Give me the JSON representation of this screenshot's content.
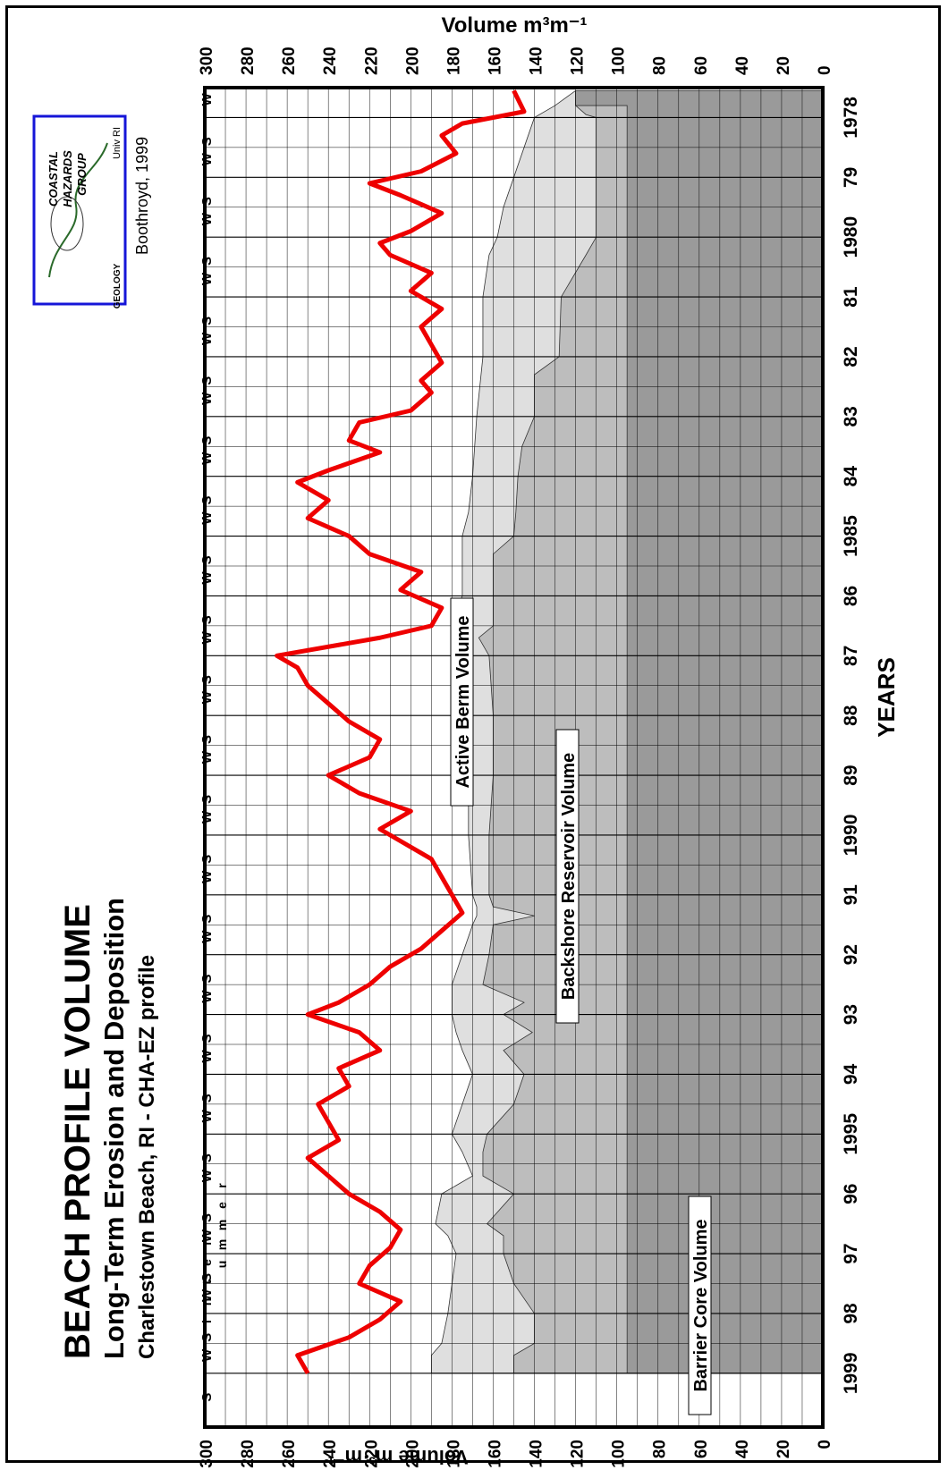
{
  "chart_data": {
    "type": "area",
    "title": "BEACH PROFILE VOLUME",
    "subtitle": "Long-Term Erosion and Deposition",
    "subtitle2": "Charlestown Beach, RI  -  CHA-EZ profile",
    "credit": "Boothroyd, 1999",
    "xlabel": "YEARS",
    "ylabel_left": "Volume   m³·m⁻¹",
    "ylabel_right": "Volume   m³m⁻¹",
    "ylim": [
      0,
      300
    ],
    "xlim": [
      1977.5,
      1999.9
    ],
    "y_ticks": [
      "0",
      "20",
      "40",
      "60",
      "80",
      "100",
      "120",
      "140",
      "160",
      "180",
      "200",
      "220",
      "240",
      "260",
      "280",
      "300"
    ],
    "x_ticks": [
      {
        "year": 1978,
        "label": "1978"
      },
      {
        "year": 1979,
        "label": "79"
      },
      {
        "year": 1980,
        "label": "1980"
      },
      {
        "year": 1981,
        "label": "81"
      },
      {
        "year": 1982,
        "label": "82"
      },
      {
        "year": 1983,
        "label": "83"
      },
      {
        "year": 1984,
        "label": "84"
      },
      {
        "year": 1985,
        "label": "1985"
      },
      {
        "year": 1986,
        "label": "86"
      },
      {
        "year": 1987,
        "label": "87"
      },
      {
        "year": 1988,
        "label": "88"
      },
      {
        "year": 1989,
        "label": "89"
      },
      {
        "year": 1990,
        "label": "1990"
      },
      {
        "year": 1991,
        "label": "91"
      },
      {
        "year": 1992,
        "label": "92"
      },
      {
        "year": 1993,
        "label": "93"
      },
      {
        "year": 1994,
        "label": "94"
      },
      {
        "year": 1995,
        "label": "1995"
      },
      {
        "year": 1996,
        "label": "96"
      },
      {
        "year": 1997,
        "label": "97"
      },
      {
        "year": 1998,
        "label": "98"
      },
      {
        "year": 1999,
        "label": "1999"
      }
    ],
    "grid": true,
    "season_legend": {
      "winter": "W",
      "summer": "S",
      "winter_word": "inter",
      "summer_word": "ummer",
      "winter_color": "#1515d8",
      "summer_color": "#19b319"
    },
    "regions": [
      {
        "name": "Barrier Core Volume",
        "color": "#9a9a9a",
        "x": [
          1977.55,
          1977.8,
          1977.8,
          1978.1,
          1999.0
        ],
        "y": [
          120,
          120,
          95,
          95,
          95
        ]
      },
      {
        "name": "Backshore Reservoir Volume",
        "color": "#bdbdbd",
        "x": [
          1977.55,
          1977.8,
          1977.95,
          1978.0,
          1980.0,
          1980.3,
          1981.0,
          1982.0,
          1982.3,
          1983.0,
          1983.5,
          1984.0,
          1984.6,
          1985.0,
          1985.3,
          1986.0,
          1986.5,
          1986.7,
          1987.0,
          1988.0,
          1989.0,
          1990.0,
          1991.0,
          1991.2,
          1991.35,
          1991.5,
          1992.0,
          1992.5,
          1992.8,
          1993.0,
          1993.3,
          1993.6,
          1994.0,
          1994.5,
          1995.0,
          1995.3,
          1995.7,
          1996.0,
          1996.5,
          1996.7,
          1997.0,
          1997.5,
          1998.0,
          1998.5,
          1998.7,
          1999.0
        ],
        "y": [
          120,
          120,
          115,
          110,
          110,
          115,
          127,
          128,
          140,
          140,
          146,
          148,
          149,
          150,
          160,
          160,
          160,
          167,
          162,
          160,
          160,
          162,
          162,
          160,
          140,
          160,
          162,
          165,
          145,
          155,
          141,
          155,
          145,
          150,
          163,
          165,
          165,
          150,
          163,
          155,
          155,
          150,
          140,
          140,
          150,
          150
        ]
      },
      {
        "name": "Active Berm Volume",
        "color": "#dfdfdf",
        "x": [
          1977.55,
          1977.8,
          1978.0,
          1979.0,
          1979.5,
          1980.0,
          1980.3,
          1981.0,
          1982.0,
          1983.0,
          1984.0,
          1984.6,
          1985.0,
          1986.0,
          1986.4,
          1986.6,
          1987.0,
          1988.0,
          1989.0,
          1990.0,
          1991.0,
          1991.2,
          1991.35,
          1991.5,
          1992.0,
          1992.5,
          1992.8,
          1993.0,
          1993.3,
          1993.6,
          1994.0,
          1994.5,
          1995.0,
          1995.3,
          1995.7,
          1996.0,
          1996.5,
          1996.7,
          1997.0,
          1997.5,
          1998.0,
          1998.5,
          1998.7,
          1999.0
        ],
        "y": [
          120,
          130,
          140,
          150,
          155,
          158,
          162,
          165,
          165,
          168,
          170,
          172,
          175,
          175,
          180,
          180,
          178,
          175,
          172,
          172,
          170,
          168,
          168,
          170,
          175,
          180,
          180,
          180,
          178,
          175,
          170,
          175,
          180,
          175,
          170,
          185,
          188,
          182,
          178,
          180,
          182,
          185,
          190,
          190
        ]
      }
    ],
    "series": [
      {
        "name": "",
        "color": "#ee0000",
        "x": [
          1977.55,
          1977.9,
          1978.1,
          1978.3,
          1978.6,
          1978.9,
          1979.1,
          1979.3,
          1979.6,
          1979.9,
          1980.1,
          1980.3,
          1980.6,
          1980.9,
          1981.2,
          1981.5,
          1981.8,
          1982.1,
          1982.4,
          1982.6,
          1982.9,
          1983.1,
          1983.4,
          1983.6,
          1983.9,
          1984.1,
          1984.4,
          1984.7,
          1985.0,
          1985.3,
          1985.6,
          1985.9,
          1986.2,
          1986.5,
          1986.7,
          1987.0,
          1987.2,
          1987.5,
          1987.8,
          1988.1,
          1988.4,
          1988.7,
          1989.0,
          1989.3,
          1989.6,
          1989.9,
          1990.1,
          1990.4,
          1990.7,
          1991.0,
          1991.3,
          1991.6,
          1991.9,
          1992.2,
          1992.5,
          1992.8,
          1993.0,
          1993.3,
          1993.6,
          1993.9,
          1994.2,
          1994.5,
          1994.8,
          1995.1,
          1995.4,
          1995.7,
          1996.0,
          1996.3,
          1996.6,
          1996.9,
          1997.2,
          1997.5,
          1997.8,
          1998.1,
          1998.4,
          1998.7,
          1999.0
        ],
        "y": [
          150,
          145,
          175,
          185,
          178,
          195,
          220,
          205,
          185,
          200,
          215,
          210,
          190,
          200,
          185,
          195,
          190,
          185,
          195,
          190,
          200,
          225,
          230,
          215,
          240,
          255,
          240,
          250,
          230,
          220,
          195,
          205,
          185,
          190,
          215,
          265,
          255,
          250,
          240,
          230,
          215,
          220,
          240,
          225,
          200,
          215,
          205,
          190,
          185,
          180,
          175,
          185,
          195,
          210,
          220,
          235,
          250,
          225,
          215,
          235,
          230,
          245,
          240,
          235,
          250,
          240,
          230,
          215,
          205,
          210,
          220,
          225,
          205,
          215,
          230,
          255,
          250
        ]
      }
    ],
    "season_marks": [
      {
        "year": 1977.7,
        "label": "W"
      },
      {
        "year": 1978.4,
        "label": "S"
      },
      {
        "year": 1978.7,
        "label": "W"
      },
      {
        "year": 1979.4,
        "label": "S"
      },
      {
        "year": 1979.7,
        "label": "W"
      },
      {
        "year": 1980.4,
        "label": "S"
      },
      {
        "year": 1980.7,
        "label": "W"
      },
      {
        "year": 1981.4,
        "label": "S"
      },
      {
        "year": 1981.7,
        "label": "W"
      },
      {
        "year": 1982.4,
        "label": "S"
      },
      {
        "year": 1982.7,
        "label": "W"
      },
      {
        "year": 1983.4,
        "label": "S"
      },
      {
        "year": 1983.7,
        "label": "W"
      },
      {
        "year": 1984.4,
        "label": "S"
      },
      {
        "year": 1984.7,
        "label": "W"
      },
      {
        "year": 1985.4,
        "label": "S"
      },
      {
        "year": 1985.7,
        "label": "W"
      },
      {
        "year": 1986.4,
        "label": "S"
      },
      {
        "year": 1986.7,
        "label": "W"
      },
      {
        "year": 1987.4,
        "label": "S"
      },
      {
        "year": 1987.7,
        "label": "W"
      },
      {
        "year": 1988.4,
        "label": "S"
      },
      {
        "year": 1988.7,
        "label": "W"
      },
      {
        "year": 1989.4,
        "label": "S"
      },
      {
        "year": 1989.7,
        "label": "W"
      },
      {
        "year": 1990.4,
        "label": "S"
      },
      {
        "year": 1990.7,
        "label": "W"
      },
      {
        "year": 1991.4,
        "label": "S"
      },
      {
        "year": 1991.7,
        "label": "W"
      },
      {
        "year": 1992.4,
        "label": "S"
      },
      {
        "year": 1992.7,
        "label": "W"
      },
      {
        "year": 1993.4,
        "label": "S"
      },
      {
        "year": 1993.7,
        "label": "W"
      },
      {
        "year": 1994.4,
        "label": "S"
      },
      {
        "year": 1994.7,
        "label": "W"
      },
      {
        "year": 1995.4,
        "label": "S"
      },
      {
        "year": 1995.7,
        "label": "W"
      },
      {
        "year": 1996.4,
        "label": "S"
      },
      {
        "year": 1996.7,
        "label": "W"
      },
      {
        "year": 1997.4,
        "label": "S"
      },
      {
        "year": 1997.7,
        "label": "W"
      },
      {
        "year": 1998.4,
        "label": "S"
      },
      {
        "year": 1998.7,
        "label": "W"
      },
      {
        "year": 1999.4,
        "label": "S"
      }
    ],
    "logo": {
      "line1": "COASTAL",
      "line2": "HAZARDS",
      "line3": "GROUP",
      "corner": "Univ RI",
      "bottom": "GEOLOGY",
      "color": "#1515d8",
      "text_color": "#ee0000"
    }
  }
}
